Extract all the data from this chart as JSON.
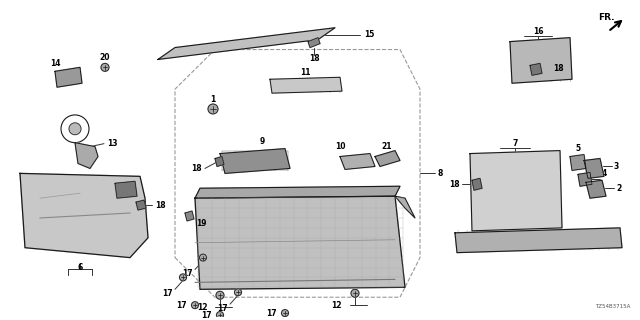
{
  "background_color": "#ffffff",
  "line_color": "#1a1a1a",
  "fig_width": 6.4,
  "fig_height": 3.2,
  "dpi": 100,
  "diagram_id": "TZ54B3715A",
  "label_fontsize": 5.5,
  "small_fontsize": 4.8
}
